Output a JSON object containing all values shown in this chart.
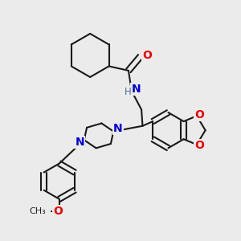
{
  "background_color": "#ebebeb",
  "bond_color": "#1a1a1a",
  "N_color": "#0000dd",
  "O_color": "#ee0000",
  "H_color": "#447788",
  "line_width": 1.5,
  "dbo": 0.014,
  "figsize": [
    3.0,
    3.0
  ],
  "dpi": 100,
  "xlim": [
    -0.05,
    1.05
  ],
  "ylim": [
    -0.05,
    1.05
  ]
}
